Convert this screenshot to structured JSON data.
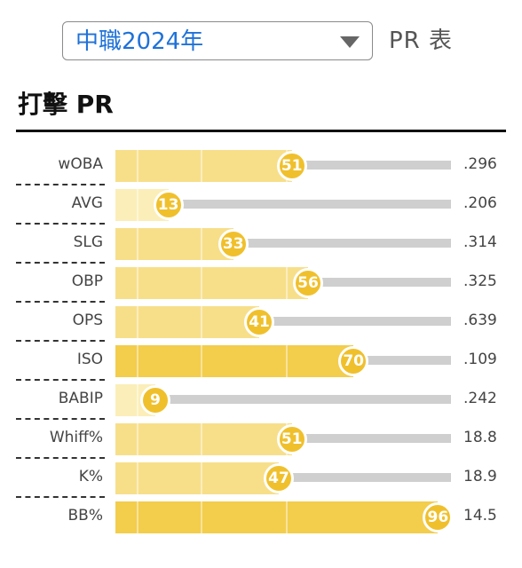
{
  "header": {
    "season_select": {
      "value": "中職2024年",
      "icon": "chevron-down-icon"
    },
    "pr_label": "PR 表"
  },
  "section": {
    "title": "打擊 PR"
  },
  "colors": {
    "pr_low": "#fbeeb8",
    "pr_mid": "#f7df8a",
    "pr_high": "#f3cd4c",
    "badge": "#f0c02c",
    "track": "#cfcfcf",
    "link": "#1f72d8"
  },
  "rows": [
    {
      "label": "wOBA",
      "pr": 51,
      "value": ".296"
    },
    {
      "label": "AVG",
      "pr": 13,
      "value": ".206"
    },
    {
      "label": "SLG",
      "pr": 33,
      "value": ".314"
    },
    {
      "label": "OBP",
      "pr": 56,
      "value": ".325"
    },
    {
      "label": "OPS",
      "pr": 41,
      "value": ".639"
    },
    {
      "label": "ISO",
      "pr": 70,
      "value": ".109"
    },
    {
      "label": "BABIP",
      "pr": 9,
      "value": ".242"
    },
    {
      "label": "Whiff%",
      "pr": 51,
      "value": "18.8"
    },
    {
      "label": "K%",
      "pr": 47,
      "value": "18.9"
    },
    {
      "label": "BB%",
      "pr": 96,
      "value": "14.5"
    }
  ]
}
